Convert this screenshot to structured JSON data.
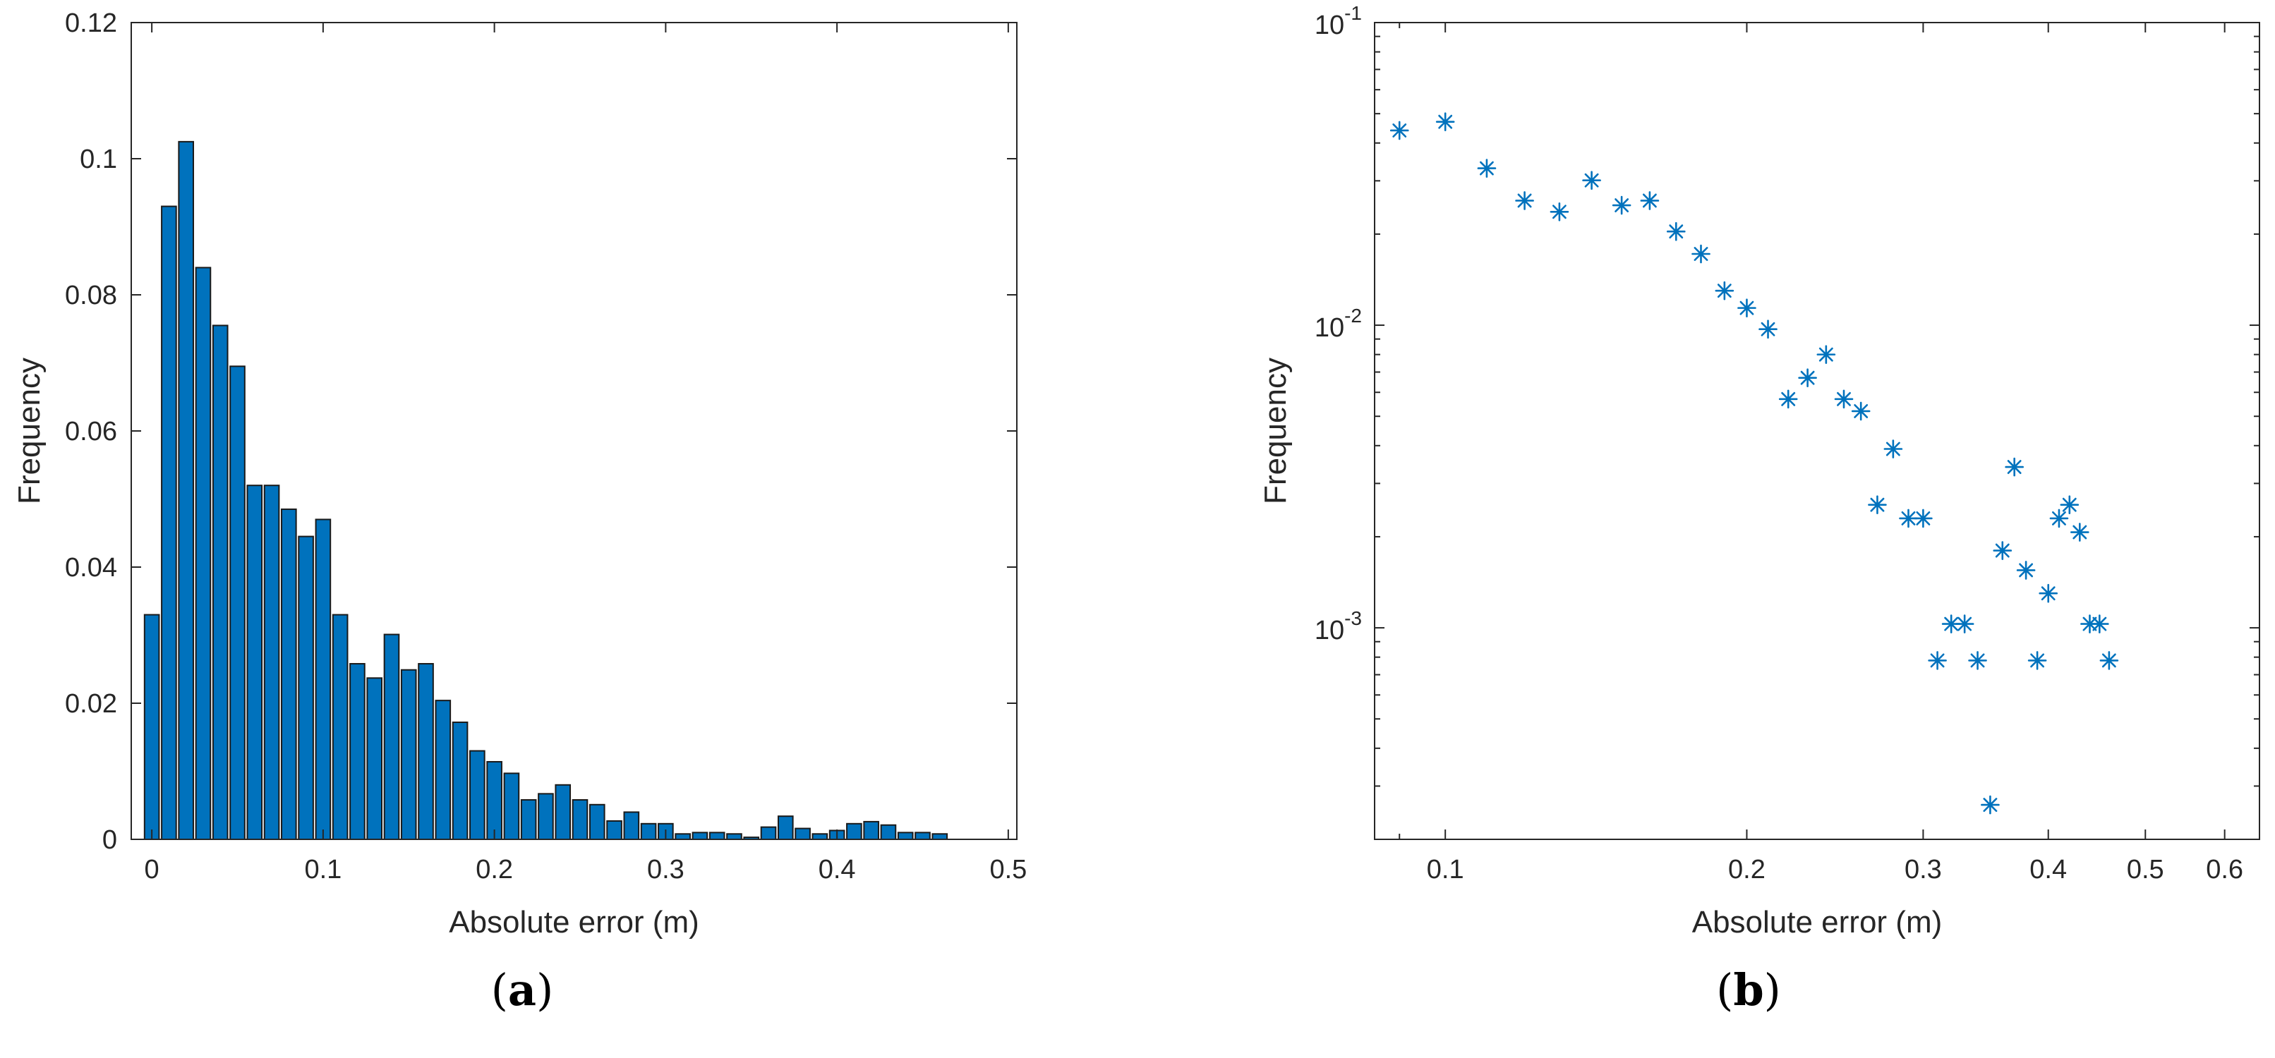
{
  "colors": {
    "bar_fill": "#0072BD",
    "marker": "#0072BD",
    "axis": "#262626"
  },
  "chart_data": [
    {
      "panel": "a",
      "type": "bar",
      "xlabel": "Absolute error (m)",
      "ylabel": "Frequency",
      "xlim": [
        -0.012,
        0.505
      ],
      "ylim": [
        0,
        0.12
      ],
      "xticks": [
        0,
        0.1,
        0.2,
        0.3,
        0.4,
        0.5
      ],
      "xtick_labels": [
        "0",
        "0.1",
        "0.2",
        "0.3",
        "0.4",
        "0.5"
      ],
      "yticks": [
        0,
        0.02,
        0.04,
        0.06,
        0.08,
        0.1,
        0.12
      ],
      "ytick_labels": [
        "0",
        "0.02",
        "0.04",
        "0.06",
        "0.08",
        "0.1",
        "0.12"
      ],
      "grid": false,
      "bar_width": 0.0085,
      "x": [
        0,
        0.01,
        0.02,
        0.03,
        0.04,
        0.05,
        0.06,
        0.07,
        0.08,
        0.09,
        0.1,
        0.11,
        0.12,
        0.13,
        0.14,
        0.15,
        0.16,
        0.17,
        0.18,
        0.19,
        0.2,
        0.21,
        0.22,
        0.23,
        0.24,
        0.25,
        0.26,
        0.27,
        0.28,
        0.29,
        0.3,
        0.31,
        0.32,
        0.33,
        0.34,
        0.35,
        0.36,
        0.37,
        0.38,
        0.39,
        0.4,
        0.41,
        0.42,
        0.43,
        0.44,
        0.45,
        0.46,
        0.47,
        0.48,
        0.49
      ],
      "values": [
        0.033,
        0.093,
        0.1025,
        0.084,
        0.0755,
        0.0695,
        0.052,
        0.052,
        0.0485,
        0.0445,
        0.047,
        0.033,
        0.0258,
        0.0237,
        0.0301,
        0.0249,
        0.0258,
        0.0204,
        0.0172,
        0.013,
        0.0114,
        0.0097,
        0.0058,
        0.0067,
        0.008,
        0.0058,
        0.0051,
        0.0027,
        0.004,
        0.0023,
        0.0023,
        0.0008,
        0.001,
        0.001,
        0.0008,
        0.0003,
        0.0018,
        0.0034,
        0.0016,
        0.0008,
        0.0013,
        0.0023,
        0.0026,
        0.0021,
        0.001,
        0.001,
        0.0008,
        0,
        0,
        0
      ]
    },
    {
      "panel": "b",
      "type": "scatter",
      "xscale": "log",
      "yscale": "log",
      "xlabel": "Absolute error (m)",
      "ylabel": "Frequency",
      "xlim": [
        0.085,
        0.65
      ],
      "ylim": [
        0.0002,
        0.1
      ],
      "xticks": [
        0.1,
        0.2,
        0.3,
        0.4,
        0.5,
        0.6
      ],
      "xtick_labels": [
        "0.1",
        "0.2",
        "0.3",
        "0.4",
        "0.5",
        "0.6"
      ],
      "yticks": [
        0.001,
        0.01,
        0.1
      ],
      "ytick_labels": [
        {
          "base": "10",
          "exp": "-3"
        },
        {
          "base": "10",
          "exp": "-2"
        },
        {
          "base": "10",
          "exp": "-1"
        }
      ],
      "grid": false,
      "marker": "*",
      "x": [
        0.09,
        0.1,
        0.11,
        0.12,
        0.13,
        0.14,
        0.15,
        0.16,
        0.17,
        0.18,
        0.19,
        0.2,
        0.21,
        0.22,
        0.23,
        0.24,
        0.25,
        0.26,
        0.27,
        0.28,
        0.29,
        0.3,
        0.31,
        0.32,
        0.33,
        0.34,
        0.35,
        0.36,
        0.37,
        0.38,
        0.39,
        0.4,
        0.41,
        0.42,
        0.43,
        0.44,
        0.45,
        0.46
      ],
      "y": [
        0.044,
        0.047,
        0.033,
        0.0258,
        0.0237,
        0.0301,
        0.0249,
        0.0258,
        0.0204,
        0.0172,
        0.013,
        0.0114,
        0.0097,
        0.0057,
        0.0067,
        0.008,
        0.0057,
        0.0052,
        0.00255,
        0.0039,
        0.0023,
        0.0023,
        0.00078,
        0.00103,
        0.00103,
        0.00078,
        0.00026,
        0.0018,
        0.0034,
        0.00155,
        0.00078,
        0.0013,
        0.0023,
        0.00255,
        0.00207,
        0.00103,
        0.00103,
        0.00078
      ]
    }
  ],
  "panels": {
    "a": {
      "open": "(",
      "letter": "a",
      "close": ")"
    },
    "b": {
      "open": "(",
      "letter": "b",
      "close": ")"
    }
  }
}
